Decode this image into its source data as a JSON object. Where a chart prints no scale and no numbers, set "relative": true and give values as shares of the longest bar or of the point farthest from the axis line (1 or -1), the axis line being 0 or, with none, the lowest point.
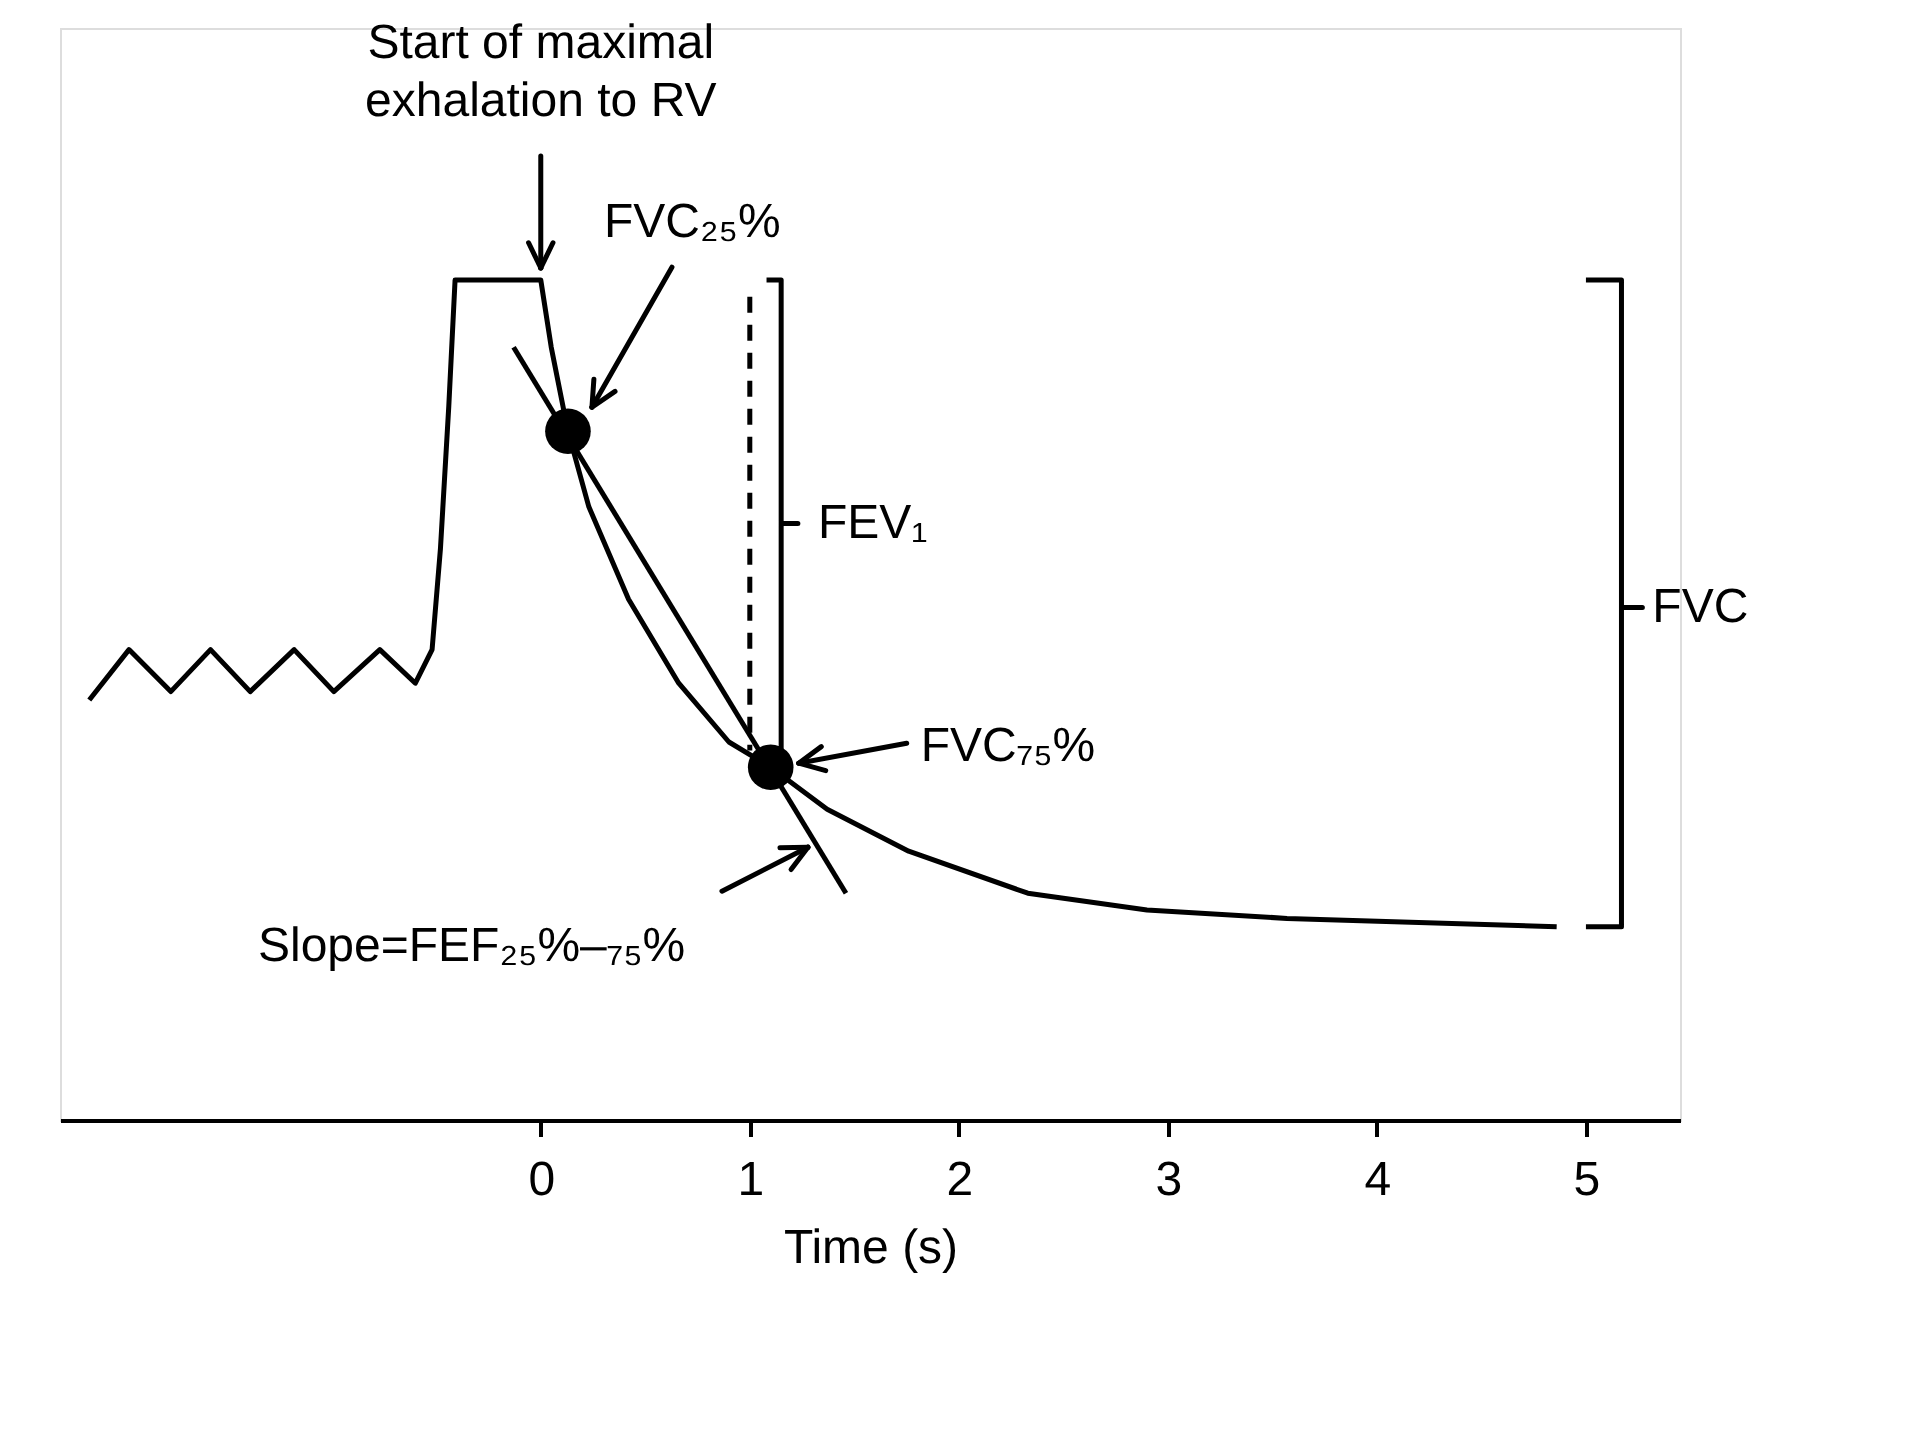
{
  "chart_data": {
    "type": "line",
    "relative": true,
    "xlabel": "Time (s)",
    "xlim": [
      -2.3,
      5.45
    ],
    "xticks": [
      0,
      1,
      2,
      3,
      4,
      5
    ],
    "tick_labels": "x",
    "series": [
      {
        "color": "#000000",
        "x": [
          -2.16,
          -1.97,
          -1.77,
          -1.58,
          -1.39,
          -1.18,
          -0.99,
          -0.77,
          -0.6,
          -0.52,
          -0.48,
          -0.44,
          -0.41,
          0,
          0.05,
          0.13,
          0.23,
          0.42,
          0.66,
          0.9,
          1.1,
          1.37,
          1.76,
          2.33,
          2.9,
          3.57,
          4.86
        ],
        "values": [
          0.5,
          0.56,
          0.51,
          0.56,
          0.51,
          0.56,
          0.51,
          0.56,
          0.52,
          0.56,
          0.68,
          0.85,
          1.0,
          1.0,
          0.92,
          0.82,
          0.73,
          0.62,
          0.52,
          0.45,
          0.42,
          0.37,
          0.32,
          0.27,
          0.25,
          0.24,
          0.23
        ]
      },
      {
        "color": "#000000",
        "x": [
          -0.13,
          1.46
        ],
        "values": [
          0.92,
          0.27
        ]
      },
      {
        "color": "#000000",
        "line_style": "dashed",
        "x": [
          1.0,
          1.0
        ],
        "values": [
          0.98,
          0.44
        ]
      },
      {
        "color": "#000000",
        "x": [
          1.08,
          1.15,
          1.15,
          1.23,
          1.15,
          1.15,
          1.08
        ],
        "values": [
          1.0,
          1.0,
          0.71,
          0.71,
          0.71,
          0.42,
          0.42
        ]
      },
      {
        "color": "#000000",
        "x": [
          5.0,
          5.17,
          5.17,
          5.27,
          5.17,
          5.17,
          5.0
        ],
        "values": [
          1.0,
          1.0,
          0.61,
          0.61,
          0.61,
          0.23,
          0.23
        ]
      },
      {
        "type": "scatter",
        "color": "#000000",
        "marker": "circle",
        "x": [
          0.13,
          1.1
        ],
        "values": [
          0.82,
          0.42
        ]
      }
    ],
    "annotations": [
      {
        "text": "Start of maximal\nexhalation to RV",
        "x": 0,
        "y": 1.0
      },
      "FVC₂₅%",
      "FVC₇₅%",
      "Slope=FEF₂₅%–₇₅%",
      {
        "text": "FEV₁",
        "x": 1.23,
        "y": 0.71
      },
      {
        "text": "FVC",
        "x": 5.27,
        "y": 0.61
      }
    ]
  }
}
